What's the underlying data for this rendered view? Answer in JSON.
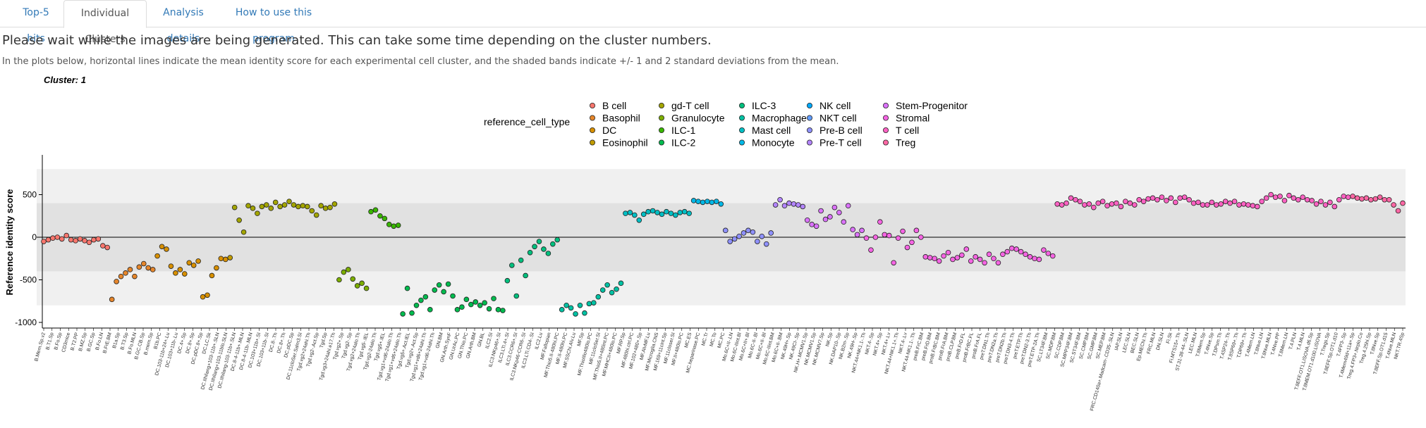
{
  "tabs": [
    {
      "label": "Top-5 hits",
      "active": false
    },
    {
      "label": "Individual Clusters",
      "active": true
    },
    {
      "label": "Analysis details",
      "active": false
    },
    {
      "label": "How to use this program",
      "active": false
    }
  ],
  "notice": "Please wait while the images are being generated. This can take some time depending on the cluster numbers.",
  "description": "In the plots below, horizontal lines indicate the mean identity score for each experimental cell cluster, and the shaded bands indicate +/- 1 and 2 standard deviations from the mean.",
  "chart_data": {
    "type": "scatter",
    "title": "Cluster: 1",
    "ylabel": "Reference identity score",
    "xlabel": "",
    "ylim": [
      -1000,
      900
    ],
    "yticks": [
      500,
      0,
      -500,
      -1000
    ],
    "mean": 0,
    "bands": {
      "sd1": [
        -400,
        400
      ],
      "sd2": [
        -800,
        800
      ]
    },
    "legend_title": "reference_cell_type",
    "legend_placement": "top",
    "series": [
      {
        "name": "B cell",
        "color": "#f8766d",
        "values": [
          -50,
          -30,
          -10,
          0,
          -20,
          20,
          -30,
          -40,
          -20,
          -40,
          -60,
          -30,
          -20,
          -100,
          -120
        ]
      },
      {
        "name": "Basophil",
        "color": "#e6862b",
        "values": [
          -730,
          -520,
          -460,
          -420,
          -380,
          -460,
          -350,
          -310,
          -360,
          -380
        ]
      },
      {
        "name": "DC",
        "color": "#d89000",
        "values": [
          -220,
          -110,
          -140,
          -340,
          -420,
          -380,
          -430,
          -300,
          -330,
          -280,
          -700,
          -680,
          -450,
          -360,
          -250,
          -260
        ]
      },
      {
        "name": "Eosinophil",
        "color": "#c09b00",
        "values": [
          -240
        ]
      },
      {
        "name": "gd-T cell",
        "color": "#a3a500",
        "values": [
          350,
          200,
          60,
          370,
          340,
          280,
          360,
          380,
          340,
          410,
          360,
          380,
          420,
          380,
          360,
          370,
          360,
          310,
          260,
          370,
          340,
          350,
          390
        ]
      },
      {
        "name": "Granulocyte",
        "color": "#7cae00",
        "values": [
          -500,
          -410,
          -380,
          -490,
          -570,
          -540,
          -600
        ]
      },
      {
        "name": "ILC-1",
        "color": "#39b600",
        "values": [
          300,
          320,
          250,
          220,
          150,
          130,
          140
        ]
      },
      {
        "name": "ILC-2",
        "color": "#00bb4e",
        "values": [
          -900,
          -600,
          -890,
          -800,
          -740,
          -700,
          -850,
          -620,
          -560,
          -640,
          -550,
          -690,
          -850,
          -820,
          -730,
          -790,
          -760,
          -800,
          -770,
          -840,
          -720,
          -850,
          -860
        ]
      },
      {
        "name": "ILC-3",
        "color": "#00bf7d",
        "values": [
          -510,
          -330,
          -690,
          -270,
          -450,
          -180,
          -110,
          -50,
          -140,
          -190,
          -80,
          -30
        ]
      },
      {
        "name": "Macrophage",
        "color": "#00c1a3",
        "values": [
          -850,
          -800,
          -830,
          -900,
          -800,
          -890,
          -780,
          -770,
          -700,
          -620,
          -560,
          -650,
          -610,
          -540
        ]
      },
      {
        "name": "Mast cell",
        "color": "#00bfc4",
        "values": [
          280,
          290,
          260,
          200,
          270,
          300,
          310,
          290,
          270,
          300,
          280,
          260,
          290,
          300,
          280
        ]
      },
      {
        "name": "Monocyte",
        "color": "#00b8e7",
        "values": [
          430,
          420,
          410,
          420,
          410,
          420,
          390
        ]
      },
      {
        "name": "NK cell",
        "color": "#00a9ff",
        "values": []
      },
      {
        "name": "NKT cell",
        "color": "#619cff",
        "values": []
      },
      {
        "name": "Pre-B cell",
        "color": "#8f91ff",
        "values": [
          80,
          -50,
          -20,
          10,
          50,
          80,
          60,
          -50,
          10,
          -80,
          50
        ]
      },
      {
        "name": "Pre-T cell",
        "color": "#b385ff",
        "values": [
          380,
          440,
          370,
          400,
          390,
          380,
          360
        ]
      },
      {
        "name": "Stem-Progenitor",
        "color": "#db72fb",
        "values": [
          200,
          150,
          130,
          310,
          210,
          240,
          350,
          290,
          180,
          370,
          90,
          30,
          80
        ]
      },
      {
        "name": "Stromal",
        "color": "#f564e3",
        "values": [
          -10,
          -150,
          0,
          180,
          30,
          20,
          -300,
          -10,
          70,
          -120,
          -60,
          80,
          0,
          -230,
          -240,
          -250,
          -280,
          -220,
          -180,
          -260,
          -240,
          -210,
          -140,
          -280,
          -230,
          -260,
          -300,
          -200,
          -250,
          -300,
          -200,
          -170,
          -130,
          -140,
          -170,
          -200,
          -230,
          -250,
          -260,
          -150,
          -190,
          -220
        ]
      },
      {
        "name": "T cell",
        "color": "#ff61c3",
        "values": [
          390,
          380,
          400,
          460,
          440,
          420,
          380,
          390,
          350,
          400,
          420,
          370,
          390,
          400,
          360,
          420,
          400,
          380,
          440,
          420,
          450,
          460,
          440,
          470,
          430,
          460,
          410,
          460,
          470,
          440,
          400,
          410,
          380,
          380,
          410,
          380,
          390,
          420,
          400,
          420,
          380,
          390,
          380,
          370,
          360,
          420,
          460,
          500,
          470,
          480,
          430,
          490,
          460,
          440,
          470,
          440,
          430,
          390,
          420,
          380,
          410,
          360,
          440,
          480,
          470
        ]
      },
      {
        "name": "Treg",
        "color": "#ff67a4",
        "values": [
          480,
          460,
          450,
          460,
          440,
          450,
          470,
          440,
          440,
          380,
          310,
          400
        ]
      }
    ],
    "x_tick_labels": [
      "B.Mem.Sp.v2",
      "B.T1.Sp",
      "B.Fo.Sp",
      "CD3mice",
      "B.T2.PP",
      "B.MZ.Sp",
      "B.GC.Sp",
      "B.Fo.LN",
      "B.FrE.BM",
      "B1a.Sp",
      "B.T3.Sp",
      "B.Fo.MLN",
      "B.GC.CB.Sp",
      "B.mem.Sp",
      "B1b.PC",
      "DC.103-11b+24+.Lu",
      "DC.103+11b-.Lu",
      "DC.4+.Sp",
      "DC.8+.Sp",
      "DC.pDC.8+.Sp",
      "DC.LC.Sk",
      "DC.IIhilang+103-11b+.SLN",
      "DC.IIhilang+103-11blo.SLN",
      "DC.IIhilang-103-11b+.SLN",
      "DC.8-4-11b+.MLN",
      "DC.8-4-11b-.MLN",
      "DC.103+11b+.SI",
      "DC.103+11b-.SI",
      "DC.8-.Th",
      "DC.8+.Th",
      "DC.pDC.Sp",
      "DC.11cloSer.Salm3.SI",
      "Tgd.vg2+24ahi.Th",
      "Tgd.vg2-.Act.Sp",
      "Tgd.Sp",
      "Tgd.vg3+24ahi.e17.Th",
      "Tgd.vg2+.Sp",
      "Tgd.vg2-.Sp",
      "Tgd.vg2+24alo.Th",
      "Tgd.vg5-.IEL",
      "Tgd.vg2-24alo.Th",
      "Tgd.vg5+.IEL",
      "Tgd.vg1+vd6-24alo.Th",
      "Tgd.vg1+vd6+24alo.Th",
      "Tgd.vg5+.Act.IEL",
      "Tgd.vg2+.Act.Sp",
      "Tgd.vg1+vd6+24ahi.Th",
      "Tgd.vg1+vd6-24ahi.Th",
      "GN.BM",
      "GN.Arth.SynF",
      "GN.UrAc.PC",
      "GN.Thio.PC",
      "GN.Arth.BM",
      "GN.BL",
      "ILC2.SI",
      "ILC3.NKp46+.SI",
      "ILC3.LTi.4+.SI",
      "ILC3.CCR6+.SI",
      "ILC3.NKp46-CCR6-.SI",
      "ILC3.LTi.CD4-.SI",
      "ILC2.Lu",
      "MF.Fallopian",
      "MF.Thio5.II-480hi.PC",
      "MF.II-480hi.PC",
      "MF.SSChi.Alv.Lu",
      "MF.Sp",
      "MF.ThioIIlo480lo.PC",
      "MF.11cloSer.SI",
      "MF.Thio5.II+480int.PC",
      "MF.MHCII+480lo.PC",
      "MF.RP.Sp",
      "MF.480hi.ctrl.PC",
      "MF.102+480+.Sp",
      "MF.AlvMF.Lu",
      "MF.Microglia.CNS",
      "MF.169+11cint.Sp",
      "MF.11closer.SI",
      "MF.II+480lo.PC",
      "MC.ES",
      "MC.heparinase.PC",
      "MC.Tr",
      "MC.To",
      "MC.PC",
      "Mo.6C+II-.LN",
      "Mo.6C-IIint.Bl",
      "Mo.6C+II+.Bl",
      "Mo.6C-II-.Bl",
      "Mo.6C+II-.Bl",
      "Mo.6C-IIint.BM",
      "Mo.6C+II-.BM",
      "NK.49H+.Sp",
      "NK.49CI-.Sp",
      "NK.H+.MCMV1.Sp",
      "NK.MCMV1.Sp",
      "NK.MCMV7.Sp",
      "NK.Sp",
      "NK.DAP10-.Sp",
      "NK.B2m-.Sp",
      "NK.49H-.Sp",
      "NKT.44+NK1.1-.Th",
      "NKT.4-.Sp",
      "NKT.4+.Sp",
      "NKT.4+.Lv",
      "NKT.44+NK1.1+.Th",
      "NKT.4-.Lv",
      "NKT.44-NK1.1-.Th",
      "preB.FrC.BM",
      "preB.FrD.BM",
      "proB.FrBC.BM",
      "proB.FrA.BM",
      "proB.CLP.BM",
      "preB.FrD.FL",
      "proB.FrBC.FL",
      "proB.FrA.FL",
      "preT.DN1.Th",
      "preT.DN2a.Th",
      "preT.DN2b.Th",
      "preT.DN3-4.Th",
      "preT.ETP.Th",
      "preT.DN2-3.Th",
      "preT.ETP-2A.Th",
      "SC.LT34F.BM",
      "SC.MDP.BM",
      "SC.CDP.BM",
      "SC.MPP34F.BM",
      "SC.ST34F.BM",
      "SC.CMP.BM",
      "SC.GMP.BM",
      "SC.MEP.BM",
      "FRC.CD140a+.Madcam-.CD35-.SLN",
      "IAP.SLN",
      "LEC.SLN",
      "BEC.SLN",
      "Ep.MEChi.Th",
      "FRC.MLN",
      "DN.SLN",
      "Fi.Sk",
      "Fi.MTS15+.Th",
      "ST.31-38-44-.SLN",
      "LEC.MLN",
      "T.8Mem.Sp",
      "T.4Nve.Sp",
      "T.DPsm.Th",
      "T.4SP24-.Th",
      "T.8SP69+.Th",
      "T.DP69+.Th",
      "T.4Mem.LN",
      "T.8Nve.LN",
      "T.8Nve.MLN",
      "T.4Nve.PP",
      "T.8Mem.LN",
      "T.4.PLN",
      "T.4.MLN",
      "T.8EFF.OT1.LISOVA.d6.Sp",
      "T.8MEM.OT1.d100.LISOVA",
      "T.Tregs.Sp",
      "T.8EFF.Sp.OT1.d10",
      "T.4FP3-.Sp",
      "T.4Mem49d+11a+.Sp",
      "Treg.4.FP3+.Nrplo.Co",
      "Treg.4.25hi.Sp",
      "T.8Nve.Sp",
      "T.8EFF.Sp.OT1.d15",
      "T.4Nve.MLN",
      "NKT.TR.4Sp"
    ]
  }
}
